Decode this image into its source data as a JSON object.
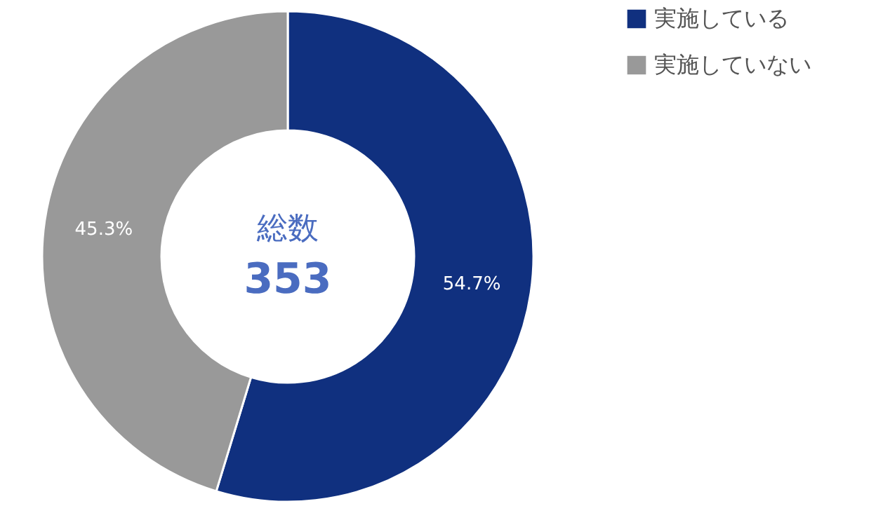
{
  "chart_data": {
    "type": "donut",
    "title": "総数",
    "subtitle": "353",
    "categories": [
      "実施している",
      "実施していない"
    ],
    "values": [
      54.7,
      45.3
    ],
    "colors": [
      "#10307f",
      "#999999"
    ],
    "value_labels": [
      "54.7%",
      "45.3%"
    ],
    "legend": "right"
  }
}
